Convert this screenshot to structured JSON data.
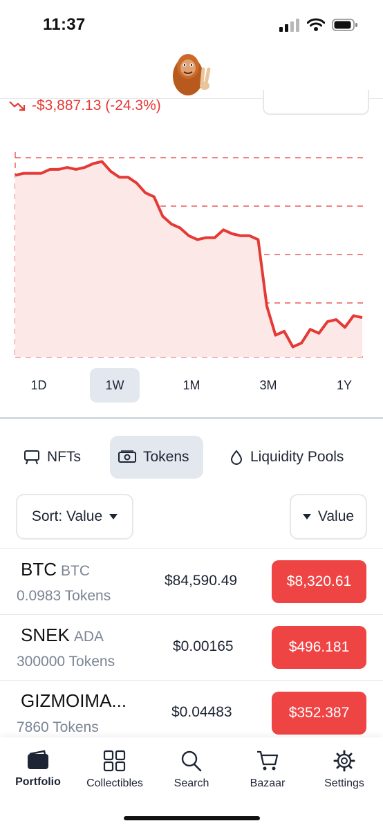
{
  "status": {
    "time": "11:37"
  },
  "portfolio": {
    "change": "-$3,887.13 (-24.3%)"
  },
  "chart_data": {
    "type": "area",
    "title": "",
    "xlabel": "",
    "ylabel": "",
    "values": [
      91,
      92,
      92,
      92,
      94,
      94,
      95,
      94,
      95,
      97,
      98,
      93,
      90,
      90,
      87,
      82,
      80,
      70,
      66,
      64,
      60,
      58,
      59,
      59,
      63,
      61,
      60,
      60,
      58,
      24,
      9,
      11,
      3,
      5,
      12,
      10,
      16,
      17,
      13,
      19,
      18
    ],
    "ylim": [
      0,
      100
    ],
    "line_color": "#e53935",
    "fill_color": "#fde8e8",
    "grid": "dashed horizontal"
  },
  "ranges": [
    {
      "label": "1D",
      "active": false
    },
    {
      "label": "1W",
      "active": true
    },
    {
      "label": "1M",
      "active": false
    },
    {
      "label": "3M",
      "active": false
    },
    {
      "label": "1Y",
      "active": false
    }
  ],
  "tabs": [
    {
      "label": "NFTs",
      "icon": "easel-icon",
      "active": false
    },
    {
      "label": "Tokens",
      "icon": "banknote-icon",
      "active": true
    },
    {
      "label": "Liquidity Pools",
      "icon": "drop-icon",
      "active": false
    }
  ],
  "controls": {
    "sort_label": "Sort: Value",
    "value_label": "Value"
  },
  "tokens": [
    {
      "name": "BTC",
      "symbol": "BTC",
      "amount": "0.0983 Tokens",
      "price": "$84,590.49",
      "value": "$8,320.61"
    },
    {
      "name": "SNEK",
      "symbol": "ADA",
      "amount": "300000 Tokens",
      "price": "$0.00165",
      "value": "$496.181"
    },
    {
      "name": "GIZMOIMA...",
      "symbol": "",
      "amount": "7860 Tokens",
      "price": "$0.04483",
      "value": "$352.387"
    }
  ],
  "nav": [
    {
      "label": "Portfolio",
      "icon": "wallet-icon",
      "active": true
    },
    {
      "label": "Collectibles",
      "icon": "grid-icon",
      "active": false
    },
    {
      "label": "Search",
      "icon": "search-icon",
      "active": false
    },
    {
      "label": "Bazaar",
      "icon": "cart-icon",
      "active": false
    },
    {
      "label": "Settings",
      "icon": "gear-icon",
      "active": false
    }
  ],
  "colors": {
    "negative": "#e53935",
    "value_badge": "#ef4444",
    "active_bg": "#e3e8ef"
  }
}
